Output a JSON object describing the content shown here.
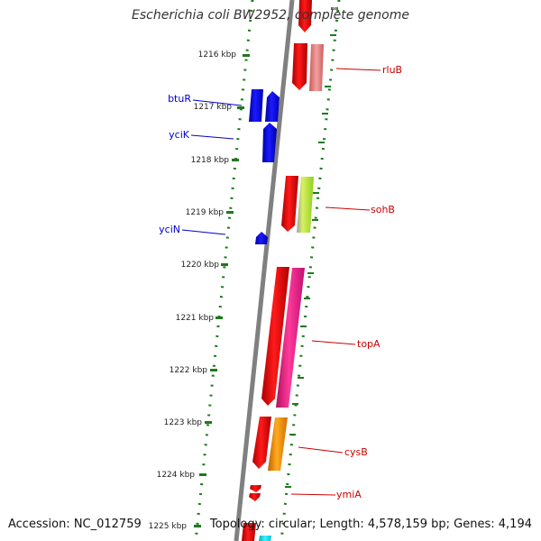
{
  "title": "Escherichia coli BW2952, complete genome",
  "footer": {
    "accession": "Accession: NC_012759",
    "summary": "Topology: circular; Length: 4,578,159 bp; Genes: 4,194"
  },
  "map": {
    "tick_labels": [
      "1216 kbp",
      "1217 kbp",
      "1218 kbp",
      "1219 kbp",
      "1220 kbp",
      "1221 kbp",
      "1222 kbp",
      "1223 kbp",
      "1224 kbp",
      "1225 kbp"
    ],
    "colors": {
      "backbone": "#808080",
      "ruler_dots": "#1e7a1e",
      "label_left": "#0000cc",
      "label_right": "#cc0000"
    },
    "genes_left": [
      {
        "name": "btuR",
        "color": "#0000ee"
      },
      {
        "name": "yciK",
        "color": "#0000ee"
      },
      {
        "name": "yciN",
        "color": "#0000ee"
      }
    ],
    "genes_right": [
      {
        "name": "rluB",
        "color": "#ee0000",
        "feature_color": "#e87a7a"
      },
      {
        "name": "sohB",
        "color": "#ee0000",
        "feature_color": "#b0e040"
      },
      {
        "name": "topA",
        "color": "#ee0000",
        "feature_color": "#ee2080"
      },
      {
        "name": "cysB",
        "color": "#ee0000",
        "feature_color": "#ff9900"
      },
      {
        "name": "ymiA",
        "color": "#ee0000"
      }
    ]
  }
}
